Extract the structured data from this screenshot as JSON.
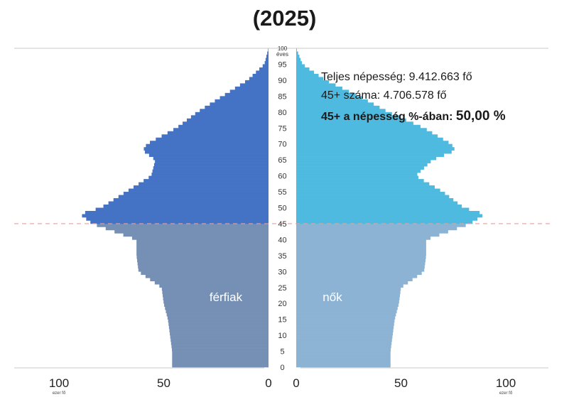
{
  "title": "(2025)",
  "info": {
    "total_label": "Teljes népesség: 9.412.663 fő",
    "count45_label": "45+ száma: 4.706.578 fő",
    "pct_label": "45+ a népesség %-ában:",
    "pct_value": "50,00 %"
  },
  "labels": {
    "male": "férfiak",
    "female": "nők",
    "age_unit": "éves",
    "x_unit": "ezer fő"
  },
  "colors": {
    "male_upper": "#4472c4",
    "male_lower": "#7590b4",
    "female_upper": "#4fbadf",
    "female_lower": "#8db3d4"
  },
  "chart_data": {
    "type": "bar",
    "orientation": "horizontal-population-pyramid",
    "title": "(2025)",
    "x_ticks": [
      100,
      50,
      0
    ],
    "x_range": [
      0,
      120
    ],
    "x_unit": "ezer fő",
    "y_ticks": [
      100,
      95,
      90,
      85,
      80,
      75,
      70,
      65,
      60,
      55,
      50,
      45,
      40,
      35,
      30,
      25,
      20,
      15,
      10,
      5,
      0
    ],
    "y_range": [
      0,
      100
    ],
    "threshold_age": 45,
    "series": [
      {
        "name": "férfiak",
        "ages": [
          0,
          5,
          10,
          15,
          20,
          25,
          30,
          35,
          40,
          45,
          48,
          50,
          55,
          60,
          65,
          68,
          70,
          75,
          80,
          85,
          90,
          95,
          100
        ],
        "values": [
          46,
          46,
          47,
          48,
          50,
          51,
          62,
          63,
          63,
          84,
          90,
          80,
          68,
          56,
          54,
          60,
          58,
          44,
          34,
          22,
          10,
          2,
          0
        ]
      },
      {
        "name": "nők",
        "ages": [
          0,
          5,
          10,
          15,
          20,
          25,
          30,
          35,
          40,
          45,
          48,
          50,
          55,
          60,
          65,
          68,
          70,
          75,
          80,
          85,
          90,
          95,
          100
        ],
        "values": [
          45,
          45,
          46,
          47,
          49,
          50,
          61,
          62,
          62,
          83,
          90,
          80,
          70,
          57,
          65,
          76,
          74,
          61,
          44,
          30,
          14,
          3,
          0
        ]
      }
    ]
  }
}
